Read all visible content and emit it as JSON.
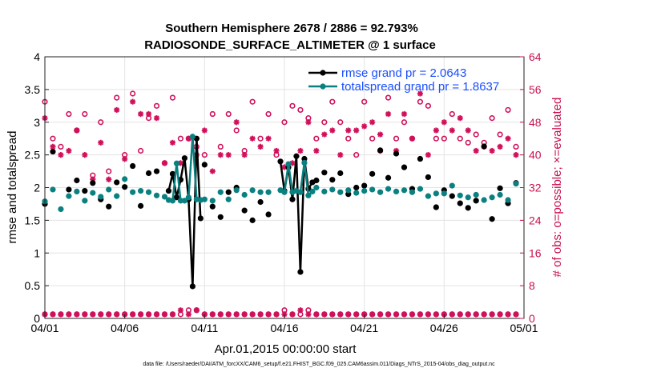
{
  "chart_data": {
    "type": "line",
    "title": "Southern Hemisphere 2678 / 2886 = 92.793%",
    "subtitle": "RADIOSONDE_SURFACE_ALTIMETER @ 1 surface",
    "xlabel": "Apr.01,2015 00:00:00 start",
    "ylabel": "rmse and totalspread",
    "y2label": "# of obs: o=possible; ×=evaluated",
    "footer": "data file: /Users/raeder/DAI/ATM_forcXX/CAM6_setup/f.e21.FHIST_BGC.f09_025.CAM6assim.011/Diags_NTrS_2015-04/obs_diag_output.nc",
    "xlim": [
      0,
      30
    ],
    "ylim": [
      0,
      4
    ],
    "y2lim": [
      0,
      64
    ],
    "x_ticks": [
      0,
      5,
      10,
      15,
      20,
      25,
      30
    ],
    "x_tick_labels": [
      "04/01",
      "04/06",
      "04/11",
      "04/16",
      "04/21",
      "04/26",
      "05/01"
    ],
    "y_ticks": [
      0,
      0.5,
      1,
      1.5,
      2,
      2.5,
      3,
      3.5,
      4
    ],
    "y_tick_labels": [
      "0",
      "0.5",
      "1",
      "1.5",
      "2",
      "2.5",
      "3",
      "3.5",
      "4"
    ],
    "y2_ticks": [
      0,
      8,
      16,
      24,
      32,
      40,
      48,
      56,
      64
    ],
    "y2_tick_labels": [
      "0",
      "8",
      "16",
      "24",
      "32",
      "40",
      "48",
      "56",
      "64"
    ],
    "grid": true,
    "legend_position": "top-right",
    "colors": {
      "rmse": "#000000",
      "spread": "#0a8080",
      "obs": "#d0105a",
      "legend_text": "#1a4fff"
    },
    "series": [
      {
        "name": "rmse grand pr = 2.0643",
        "kind": "rmse",
        "segments": [
          {
            "x": [
              7.75,
              8.0,
              8.25,
              8.5,
              8.75,
              9.0,
              9.25,
              9.5,
              9.75
            ],
            "y": [
              1.95,
              2.21,
              1.85,
              2.12,
              2.45,
              1.82,
              0.49,
              2.75,
              1.53
            ]
          },
          {
            "x": [
              14.75,
              15.0,
              15.25,
              15.5,
              15.75,
              16.0,
              16.25,
              16.5,
              16.75
            ],
            "y": [
              2.4,
              1.95,
              2.31,
              1.82,
              2.48,
              0.71,
              2.44,
              1.98,
              2.08
            ]
          }
        ],
        "points": {
          "x": [
            0.0,
            0.5,
            1.5,
            2.0,
            2.5,
            3.0,
            3.5,
            4.0,
            4.5,
            5.0,
            5.5,
            6.0,
            6.5,
            7.0,
            10.0,
            10.5,
            11.0,
            11.5,
            12.0,
            12.5,
            13.0,
            13.5,
            14.0,
            17.0,
            17.5,
            18.0,
            18.5,
            19.0,
            19.5,
            20.0,
            20.5,
            21.0,
            21.5,
            22.0,
            22.5,
            23.0,
            23.5,
            24.0,
            24.5,
            25.0,
            25.5,
            26.0,
            26.5,
            27.0,
            27.5,
            28.0,
            28.5,
            29.0,
            29.5
          ],
          "y": [
            1.75,
            2.55,
            1.97,
            2.11,
            1.95,
            2.07,
            1.82,
            1.71,
            2.08,
            2.01,
            2.33,
            1.72,
            2.22,
            2.25,
            2.35,
            1.71,
            1.55,
            1.93,
            2.0,
            1.65,
            1.5,
            1.78,
            1.59,
            2.11,
            2.23,
            2.12,
            2.22,
            1.9,
            2.0,
            2.03,
            2.21,
            2.57,
            2.15,
            2.52,
            2.31,
            1.98,
            2.44,
            2.16,
            1.7,
            1.96,
            1.87,
            1.76,
            1.69,
            1.8,
            2.63,
            1.52,
            1.99,
            1.76,
            2.07
          ]
        }
      },
      {
        "name": "totalspread grand pr = 1.8637",
        "kind": "spread",
        "segments": [
          {
            "x": [
              7.75,
              8.0,
              8.25,
              8.5,
              8.75,
              9.0,
              9.25,
              9.5,
              9.75
            ],
            "y": [
              1.81,
              1.8,
              2.37,
              1.8,
              1.8,
              1.85,
              2.78,
              1.82,
              1.81
            ]
          },
          {
            "x": [
              14.75,
              15.0,
              15.25,
              15.5,
              15.75,
              16.0,
              16.25,
              16.5,
              16.75
            ],
            "y": [
              1.96,
              1.93,
              2.36,
              1.93,
              1.95,
              1.93,
              2.38,
              1.88,
              1.94
            ]
          }
        ],
        "points": {
          "x": [
            0.0,
            0.5,
            1.0,
            1.5,
            2.0,
            2.5,
            3.0,
            3.5,
            4.0,
            4.5,
            5.0,
            5.5,
            6.0,
            6.5,
            7.0,
            7.5,
            10.0,
            10.5,
            11.0,
            11.5,
            12.0,
            12.5,
            13.0,
            13.5,
            14.0,
            17.0,
            17.5,
            18.0,
            18.5,
            19.0,
            19.5,
            20.0,
            20.5,
            21.0,
            21.5,
            22.0,
            22.5,
            23.0,
            23.5,
            24.0,
            24.5,
            25.0,
            25.5,
            26.0,
            26.5,
            27.0,
            27.5,
            28.0,
            28.5,
            29.0,
            29.5
          ],
          "y": [
            1.79,
            1.97,
            1.67,
            1.87,
            1.94,
            1.8,
            1.92,
            1.86,
            1.97,
            1.87,
            2.13,
            1.93,
            1.95,
            1.93,
            1.88,
            1.86,
            1.82,
            1.8,
            1.93,
            1.82,
            1.96,
            1.89,
            1.96,
            1.93,
            1.93,
            2.0,
            1.94,
            1.97,
            1.93,
            1.96,
            1.92,
            1.95,
            1.97,
            1.93,
            1.98,
            1.94,
            1.96,
            1.93,
            1.98,
            1.87,
            1.91,
            1.91,
            2.03,
            1.88,
            1.85,
            1.89,
            1.81,
            1.85,
            1.89,
            1.81,
            2.06
          ]
        }
      },
      {
        "name": "obs possible",
        "kind": "possible",
        "x": [
          0.0,
          0.5,
          1.0,
          1.5,
          2.0,
          2.5,
          3.0,
          3.5,
          4.0,
          4.5,
          5.0,
          5.5,
          6.0,
          6.5,
          7.0,
          7.5,
          8.0,
          8.5,
          9.0,
          9.5,
          10.0,
          10.5,
          11.0,
          11.5,
          12.0,
          12.5,
          13.0,
          13.5,
          14.0,
          14.5,
          15.0,
          15.5,
          16.0,
          16.5,
          17.0,
          17.5,
          18.0,
          18.5,
          19.0,
          19.5,
          20.0,
          20.5,
          21.0,
          21.5,
          22.0,
          22.5,
          23.0,
          23.5,
          24.0,
          24.5,
          25.0,
          25.5,
          26.0,
          26.5,
          27.0,
          27.5,
          28.0,
          28.5,
          29.0,
          29.5
        ],
        "y": [
          53,
          44,
          42,
          50,
          46,
          50,
          35,
          48,
          36,
          54,
          40,
          55,
          41,
          49,
          52,
          38,
          54,
          44,
          44,
          42,
          40,
          50,
          42,
          50,
          46,
          41,
          53,
          44,
          50,
          40,
          48,
          52,
          51,
          49,
          44,
          48,
          53,
          48,
          44,
          40,
          53,
          44,
          41,
          54,
          44,
          48,
          44,
          53,
          52,
          44,
          44,
          50,
          44,
          43,
          45,
          43,
          49,
          45,
          51,
          42
        ],
        "note": "circles, right axis"
      },
      {
        "name": "obs evaluated",
        "kind": "evaluated",
        "x": [
          0.0,
          0.5,
          1.0,
          1.5,
          2.0,
          2.5,
          3.0,
          3.5,
          4.0,
          4.5,
          5.0,
          5.5,
          6.0,
          6.5,
          7.0,
          7.5,
          8.0,
          8.5,
          9.0,
          9.5,
          10.0,
          10.5,
          11.0,
          11.5,
          12.0,
          12.5,
          13.0,
          13.5,
          14.0,
          14.5,
          15.0,
          15.5,
          16.0,
          16.5,
          17.0,
          17.5,
          18.0,
          18.5,
          19.0,
          19.5,
          20.0,
          20.5,
          21.0,
          21.5,
          22.0,
          22.5,
          23.0,
          23.5,
          24.0,
          24.5,
          25.0,
          25.5,
          26.0,
          26.5,
          27.0,
          27.5,
          28.0,
          28.5,
          29.0,
          29.5
        ],
        "y": [
          49,
          42,
          40,
          41,
          46,
          40,
          34,
          43,
          34,
          51,
          39,
          53,
          50,
          50,
          49,
          38,
          43,
          38,
          44,
          40,
          46,
          36,
          40,
          40,
          48,
          40,
          44,
          42,
          44,
          41,
          37,
          38,
          41,
          48,
          41,
          45,
          46,
          40,
          46,
          46,
          47,
          48,
          45,
          50,
          41,
          50,
          44,
          55,
          40,
          46,
          48,
          46,
          49,
          46,
          41,
          42,
          41,
          42,
          44,
          40
        ],
        "note": "asterisks, right axis"
      },
      {
        "name": "obs near zero possible",
        "kind": "possible",
        "x": [
          0.0,
          0.5,
          1.0,
          1.5,
          2.0,
          2.5,
          3.0,
          3.5,
          4.0,
          4.5,
          5.0,
          5.5,
          6.0,
          6.5,
          7.0,
          7.5,
          8.0,
          8.5,
          9.0,
          9.5,
          10.0,
          10.5,
          11.0,
          11.5,
          12.0,
          12.5,
          13.0,
          13.5,
          14.0,
          14.5,
          15.0,
          15.5,
          16.0,
          16.5,
          17.0,
          17.5,
          18.0,
          18.5,
          19.0,
          19.5,
          20.0,
          20.5,
          21.0,
          21.5,
          22.0,
          22.5,
          23.0,
          23.5,
          24.0,
          24.5,
          25.0,
          25.5,
          26.0,
          26.5,
          27.0,
          27.5,
          28.0,
          28.5,
          29.0,
          29.5
        ],
        "y": [
          1,
          1,
          1,
          1,
          1,
          1,
          1,
          1,
          1,
          1,
          1,
          1,
          1,
          1,
          1,
          1,
          1,
          1,
          2,
          2,
          1,
          1,
          1,
          1,
          1,
          1,
          1,
          1,
          1,
          1,
          2,
          1,
          1,
          2,
          1,
          1,
          1,
          1,
          1,
          1,
          1,
          1,
          1,
          1,
          1,
          1,
          1,
          1,
          1,
          1,
          1,
          1,
          1,
          1,
          1,
          1,
          1,
          1,
          1,
          1
        ]
      },
      {
        "name": "obs near zero evaluated",
        "kind": "evaluated",
        "x": [
          0.0,
          0.5,
          1.0,
          1.5,
          2.0,
          2.5,
          3.0,
          3.5,
          4.0,
          4.5,
          5.0,
          5.5,
          6.0,
          6.5,
          7.0,
          7.5,
          8.0,
          8.5,
          9.0,
          9.5,
          10.0,
          10.5,
          11.0,
          11.5,
          12.0,
          12.5,
          13.0,
          13.5,
          14.0,
          14.5,
          15.0,
          15.5,
          16.0,
          16.5,
          17.0,
          17.5,
          18.0,
          18.5,
          19.0,
          19.5,
          20.0,
          20.5,
          21.0,
          21.5,
          22.0,
          22.5,
          23.0,
          23.5,
          24.0,
          24.5,
          25.0,
          25.5,
          26.0,
          26.5,
          27.0,
          27.5,
          28.0,
          28.5,
          29.0,
          29.5
        ],
        "y": [
          1,
          1,
          1,
          1,
          1,
          1,
          1,
          1,
          1,
          1,
          1,
          1,
          1,
          1,
          1,
          1,
          1,
          2,
          1,
          2,
          1,
          1,
          1,
          1,
          1,
          1,
          1,
          1,
          1,
          1,
          1,
          1,
          2,
          1,
          1,
          1,
          1,
          1,
          1,
          1,
          1,
          1,
          1,
          1,
          1,
          1,
          1,
          1,
          1,
          1,
          1,
          1,
          1,
          1,
          1,
          1,
          1,
          1,
          1,
          1
        ]
      }
    ],
    "legend": [
      {
        "label": "rmse grand pr = 2.0643",
        "series": "rmse"
      },
      {
        "label": "totalspread grand pr = 1.8637",
        "series": "spread"
      }
    ]
  }
}
